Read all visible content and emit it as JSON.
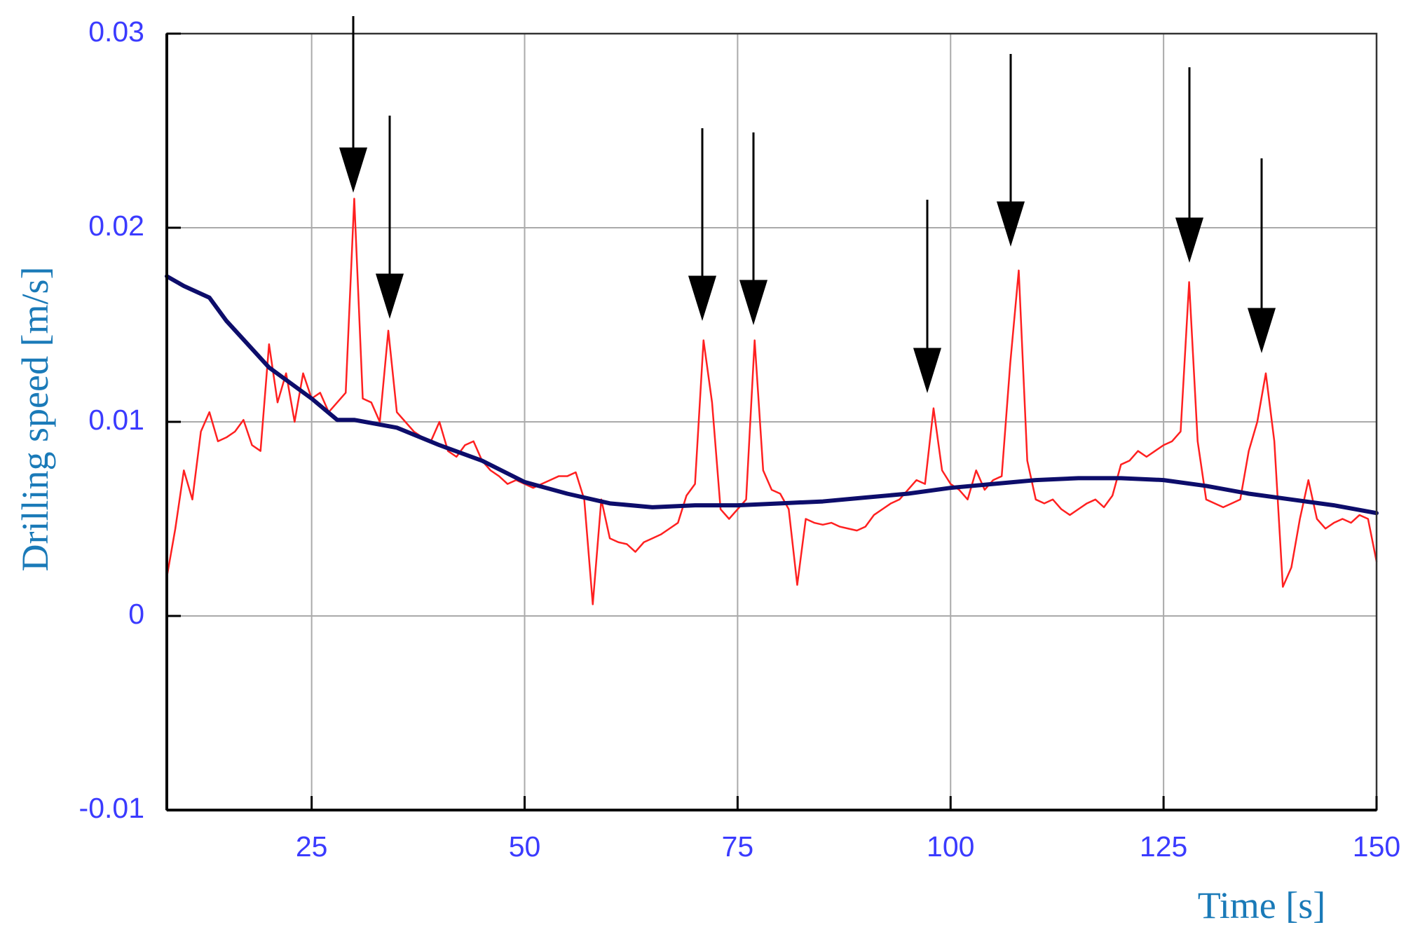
{
  "chart_data": {
    "type": "line",
    "x_label": "Time [s]",
    "y_label": "Drilling speed [m/s]",
    "xlim": [
      8,
      150
    ],
    "ylim": [
      -0.01,
      0.03
    ],
    "xticks": [
      25,
      50,
      75,
      100,
      125,
      150
    ],
    "yticks": [
      -0.01,
      0,
      0.01,
      0.02,
      0.03
    ],
    "grid": true,
    "series": [
      {
        "color": "#ff2020",
        "x": [
          8,
          9,
          10,
          11,
          12,
          13,
          14,
          15,
          16,
          17,
          18,
          19,
          20,
          21,
          22,
          23,
          24,
          25,
          26,
          27,
          28,
          29,
          30,
          31,
          32,
          33,
          34,
          35,
          36,
          37,
          38,
          39,
          40,
          41,
          42,
          43,
          44,
          45,
          46,
          47,
          48,
          49,
          50,
          51,
          52,
          53,
          54,
          55,
          56,
          57,
          58,
          59,
          60,
          61,
          62,
          63,
          64,
          65,
          66,
          67,
          68,
          69,
          70,
          71,
          72,
          73,
          74,
          75,
          76,
          77,
          78,
          79,
          80,
          81,
          82,
          83,
          84,
          85,
          86,
          87,
          88,
          89,
          90,
          91,
          92,
          93,
          94,
          95,
          96,
          97,
          98,
          99,
          100,
          101,
          102,
          103,
          104,
          105,
          106,
          107,
          108,
          109,
          110,
          111,
          112,
          113,
          114,
          115,
          116,
          117,
          118,
          119,
          120,
          121,
          122,
          123,
          124,
          125,
          126,
          127,
          128,
          129,
          130,
          131,
          132,
          133,
          134,
          135,
          136,
          137,
          138,
          139,
          140,
          141,
          142,
          143,
          144,
          145,
          146,
          147,
          148,
          149,
          150
        ],
        "values": [
          0.002,
          0.0045,
          0.0075,
          0.006,
          0.0095,
          0.0105,
          0.009,
          0.0092,
          0.0095,
          0.0101,
          0.0088,
          0.0085,
          0.014,
          0.011,
          0.0125,
          0.01,
          0.0125,
          0.0112,
          0.0115,
          0.0105,
          0.011,
          0.0115,
          0.0215,
          0.0112,
          0.011,
          0.01,
          0.0147,
          0.0105,
          0.01,
          0.0095,
          0.0092,
          0.009,
          0.01,
          0.0085,
          0.0082,
          0.0088,
          0.009,
          0.008,
          0.0075,
          0.0072,
          0.0068,
          0.007,
          0.0068,
          0.0066,
          0.0068,
          0.007,
          0.0072,
          0.0072,
          0.0074,
          0.006,
          0.0006,
          0.006,
          0.004,
          0.0038,
          0.0037,
          0.0033,
          0.0038,
          0.004,
          0.0042,
          0.0045,
          0.0048,
          0.0062,
          0.0068,
          0.0142,
          0.011,
          0.0055,
          0.005,
          0.0055,
          0.006,
          0.0142,
          0.0075,
          0.0065,
          0.0063,
          0.0055,
          0.0016,
          0.005,
          0.0048,
          0.0047,
          0.0048,
          0.0046,
          0.0045,
          0.0044,
          0.0046,
          0.0052,
          0.0055,
          0.0058,
          0.006,
          0.0065,
          0.007,
          0.0068,
          0.0107,
          0.0075,
          0.0068,
          0.0065,
          0.006,
          0.0075,
          0.0065,
          0.007,
          0.0072,
          0.013,
          0.0178,
          0.008,
          0.006,
          0.0058,
          0.006,
          0.0055,
          0.0052,
          0.0055,
          0.0058,
          0.006,
          0.0056,
          0.0062,
          0.0078,
          0.008,
          0.0085,
          0.0082,
          0.0085,
          0.0088,
          0.009,
          0.0095,
          0.0172,
          0.009,
          0.006,
          0.0058,
          0.0056,
          0.0058,
          0.006,
          0.0085,
          0.01,
          0.0125,
          0.009,
          0.0015,
          0.0025,
          0.005,
          0.007,
          0.005,
          0.0045,
          0.0048,
          0.005,
          0.0048,
          0.0052,
          0.005,
          0.0028
        ]
      },
      {
        "color": "#0d0d6b",
        "x": [
          8,
          10,
          13,
          15,
          20,
          25,
          28,
          30,
          35,
          40,
          45,
          50,
          55,
          60,
          65,
          70,
          75,
          80,
          85,
          90,
          95,
          100,
          105,
          110,
          115,
          120,
          125,
          130,
          135,
          140,
          145,
          150
        ],
        "values": [
          0.0175,
          0.017,
          0.0164,
          0.0152,
          0.0128,
          0.0112,
          0.0101,
          0.0101,
          0.0097,
          0.0088,
          0.008,
          0.0069,
          0.0063,
          0.0058,
          0.0056,
          0.0057,
          0.0057,
          0.0058,
          0.0059,
          0.0061,
          0.0063,
          0.0066,
          0.0068,
          0.007,
          0.0071,
          0.0071,
          0.007,
          0.0067,
          0.0063,
          0.006,
          0.0057,
          0.0053
        ]
      }
    ]
  }
}
